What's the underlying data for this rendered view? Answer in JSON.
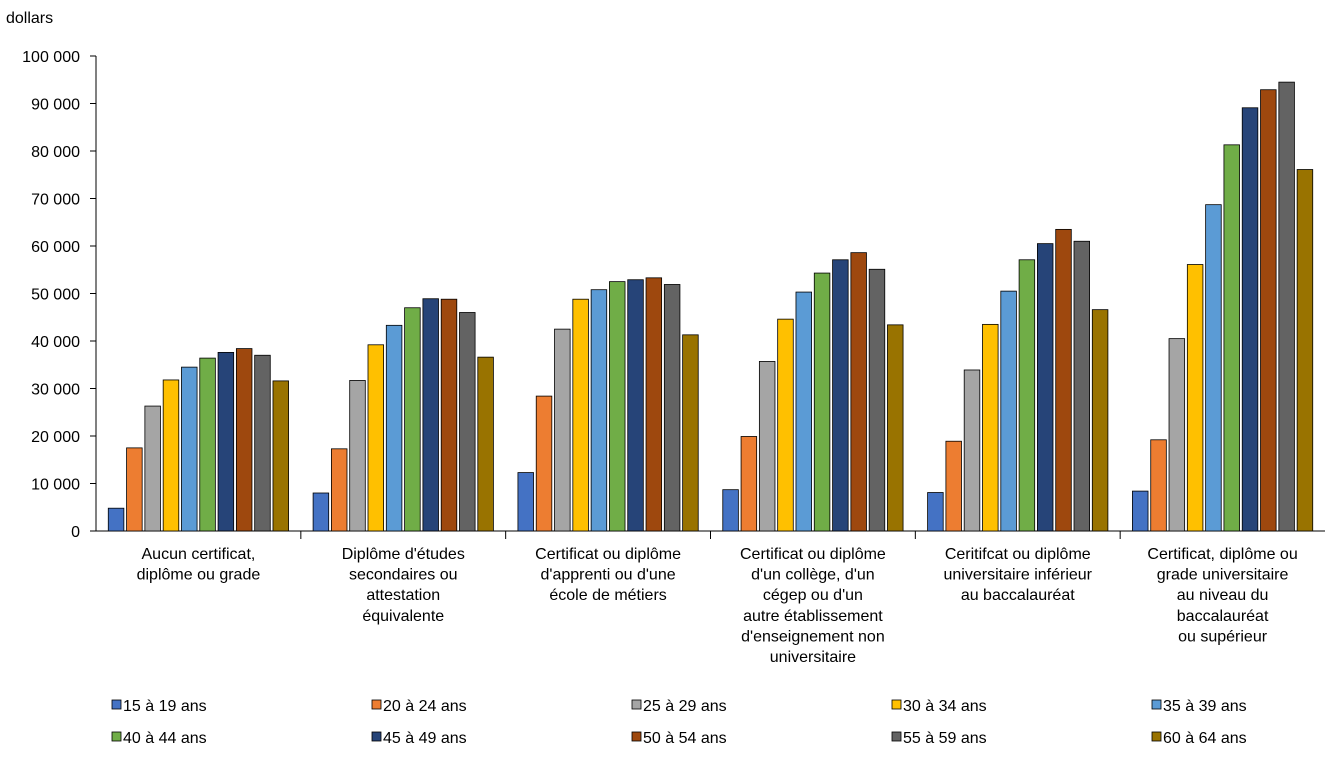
{
  "chart_data": {
    "type": "bar",
    "ylabel": "dollars",
    "ylim": [
      0,
      100000
    ],
    "yticks": [
      0,
      10000,
      20000,
      30000,
      40000,
      50000,
      60000,
      70000,
      80000,
      90000,
      100000
    ],
    "ytick_labels": [
      "0",
      "10 000",
      "20 000",
      "30 000",
      "40 000",
      "50 000",
      "60 000",
      "70 000",
      "80 000",
      "90 000",
      "100 000"
    ],
    "grid": false,
    "legend_placement": "bottom",
    "categories": [
      [
        "Aucun certificat,",
        "diplôme ou grade"
      ],
      [
        "Diplôme d'études",
        "secondaires ou",
        "attestation",
        "équivalente"
      ],
      [
        "Certificat ou diplôme",
        "d'apprenti ou d'une",
        "école de métiers"
      ],
      [
        "Certificat ou diplôme",
        "d'un collège, d'un",
        "cégep ou d'un",
        "autre établissement",
        "d'enseignement non",
        "universitaire"
      ],
      [
        "Ceritifcat ou diplôme",
        "universitaire inférieur",
        "au baccalauréat"
      ],
      [
        "Certificat, diplôme ou",
        "grade universitaire",
        "au niveau du",
        "baccalauréat",
        "ou supérieur"
      ]
    ],
    "series": [
      {
        "name": "15 à 19 ans",
        "color": "#4472C4",
        "values": [
          4800,
          8000,
          12300,
          8700,
          8100,
          8400
        ]
      },
      {
        "name": "20 à 24 ans",
        "color": "#ED7D31",
        "values": [
          17500,
          17300,
          28400,
          19900,
          18900,
          19200
        ]
      },
      {
        "name": "25 à 29 ans",
        "color": "#A5A5A5",
        "values": [
          26300,
          31700,
          42500,
          35700,
          33900,
          40500
        ]
      },
      {
        "name": "30 à 34 ans",
        "color": "#FFC000",
        "values": [
          31800,
          39200,
          48800,
          44600,
          43500,
          56100
        ]
      },
      {
        "name": "35 à 39 ans",
        "color": "#5B9BD5",
        "values": [
          34500,
          43300,
          50800,
          50300,
          50500,
          68700
        ]
      },
      {
        "name": "40 à 44 ans",
        "color": "#70AD47",
        "values": [
          36400,
          47000,
          52500,
          54300,
          57100,
          81300
        ]
      },
      {
        "name": "45 à 49 ans",
        "color": "#264478",
        "values": [
          37600,
          48900,
          52900,
          57100,
          60500,
          89100
        ]
      },
      {
        "name": "50 à 54 ans",
        "color": "#9E480E",
        "values": [
          38400,
          48800,
          53300,
          58600,
          63500,
          92900
        ]
      },
      {
        "name": "55 à 59 ans",
        "color": "#636363",
        "values": [
          37000,
          46000,
          51900,
          55100,
          61000,
          94500
        ]
      },
      {
        "name": "60 à 64 ans",
        "color": "#997300",
        "values": [
          31600,
          36600,
          41300,
          43400,
          46600,
          76100
        ]
      }
    ]
  }
}
